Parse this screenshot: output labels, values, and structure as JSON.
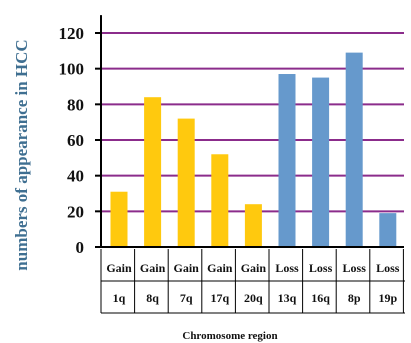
{
  "chart_data": {
    "type": "bar",
    "categories": [
      "1q",
      "8q",
      "7q",
      "17q",
      "20q",
      "13q",
      "16q",
      "8p",
      "19p"
    ],
    "category_groups": [
      "Gain",
      "Gain",
      "Gain",
      "Gain",
      "Gain",
      "Loss",
      "Loss",
      "Loss",
      "Loss"
    ],
    "values": [
      31,
      84,
      72,
      52,
      24,
      97,
      95,
      109,
      19
    ],
    "xlabel": "Chromosome region",
    "ylabel": "numbers of appearance in HCC",
    "ylim": [
      0,
      130
    ],
    "yticks": [
      0,
      20,
      40,
      60,
      80,
      100,
      120
    ],
    "grid": true,
    "legend": "none",
    "colors": {
      "Gain": "#ffc90e",
      "Loss": "#6699cc",
      "grid": "#8b2c8b",
      "axis": "#000000"
    }
  }
}
